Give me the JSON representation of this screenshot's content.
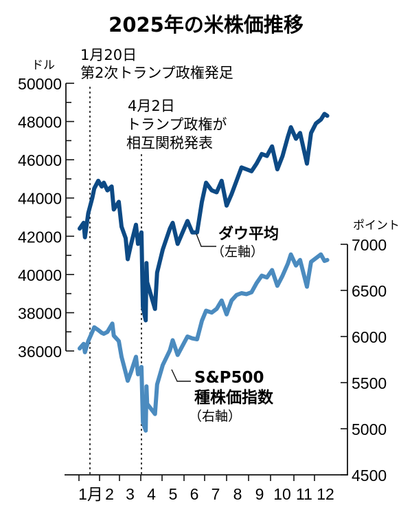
{
  "chart_data": {
    "type": "line",
    "title": "2025年の米株価推移",
    "xlabel": "",
    "x_tick_labels": [
      "1月",
      "2",
      "3",
      "4",
      "5",
      "6",
      "7",
      "8",
      "9",
      "10",
      "11",
      "12"
    ],
    "left_axis": {
      "unit": "ドル",
      "ticks": [
        36000,
        38000,
        40000,
        42000,
        44000,
        46000,
        48000,
        50000
      ],
      "tick_labels": [
        "36000",
        "38000",
        "40000",
        "42000",
        "44000",
        "46000",
        "48000",
        "50000"
      ],
      "ylim": [
        36000,
        50000
      ]
    },
    "right_axis": {
      "unit": "ポイント",
      "ticks": [
        4500,
        5000,
        5500,
        6000,
        6500,
        7000
      ],
      "tick_labels": [
        "4500",
        "5000",
        "5500",
        "6000",
        "6500",
        "7000"
      ],
      "ylim": [
        4500,
        7000
      ]
    },
    "series": [
      {
        "name": "ダウ平均",
        "axis": "left",
        "axis_note": "（左軸）",
        "color": "#0d4a85",
        "points": [
          [
            "1/2",
            42400
          ],
          [
            "1/8",
            42700
          ],
          [
            "1/10",
            41950
          ],
          [
            "1/15",
            43200
          ],
          [
            "1/21",
            44000
          ],
          [
            "1/24",
            44500
          ],
          [
            "1/30",
            44900
          ],
          [
            "2/4",
            44600
          ],
          [
            "2/7",
            44800
          ],
          [
            "2/12",
            44400
          ],
          [
            "2/18",
            44600
          ],
          [
            "2/21",
            43400
          ],
          [
            "2/28",
            43800
          ],
          [
            "3/4",
            42500
          ],
          [
            "3/10",
            41900
          ],
          [
            "3/13",
            40800
          ],
          [
            "3/18",
            41600
          ],
          [
            "3/25",
            42600
          ],
          [
            "3/28",
            41600
          ],
          [
            "4/2",
            42200
          ],
          [
            "4/4",
            38300
          ],
          [
            "4/8",
            37600
          ],
          [
            "4/9",
            40600
          ],
          [
            "4/10",
            39600
          ],
          [
            "4/21",
            38200
          ],
          [
            "4/24",
            40100
          ],
          [
            "5/2",
            41300
          ],
          [
            "5/12",
            42400
          ],
          [
            "5/16",
            42700
          ],
          [
            "5/23",
            41600
          ],
          [
            "6/6",
            42800
          ],
          [
            "6/13",
            42200
          ],
          [
            "6/20",
            42200
          ],
          [
            "6/27",
            43800
          ],
          [
            "7/3",
            44800
          ],
          [
            "7/11",
            44400
          ],
          [
            "7/18",
            44300
          ],
          [
            "7/25",
            44900
          ],
          [
            "8/1",
            43600
          ],
          [
            "8/8",
            44200
          ],
          [
            "8/15",
            44900
          ],
          [
            "8/22",
            45600
          ],
          [
            "8/29",
            45500
          ],
          [
            "9/5",
            45400
          ],
          [
            "9/12",
            45800
          ],
          [
            "9/19",
            46300
          ],
          [
            "9/26",
            46200
          ],
          [
            "10/3",
            46700
          ],
          [
            "10/10",
            45500
          ],
          [
            "10/17",
            46200
          ],
          [
            "10/24",
            47200
          ],
          [
            "10/28",
            47700
          ],
          [
            "11/4",
            47100
          ],
          [
            "11/10",
            47400
          ],
          [
            "11/20",
            45800
          ],
          [
            "11/26",
            47400
          ],
          [
            "12/3",
            47900
          ],
          [
            "12/10",
            48100
          ],
          [
            "12/15",
            48400
          ],
          [
            "12/19",
            48300
          ]
        ]
      },
      {
        "name": "S&P500種株価指数",
        "axis": "right",
        "axis_note": "（右軸）",
        "color": "#4b8bbf",
        "points": [
          [
            "1/2",
            5870
          ],
          [
            "1/8",
            5920
          ],
          [
            "1/10",
            5830
          ],
          [
            "1/15",
            5950
          ],
          [
            "1/21",
            6050
          ],
          [
            "1/24",
            6100
          ],
          [
            "1/30",
            6070
          ],
          [
            "2/4",
            6040
          ],
          [
            "2/7",
            6030
          ],
          [
            "2/12",
            6050
          ],
          [
            "2/19",
            6140
          ],
          [
            "2/21",
            6010
          ],
          [
            "2/28",
            5950
          ],
          [
            "3/4",
            5780
          ],
          [
            "3/10",
            5610
          ],
          [
            "3/13",
            5520
          ],
          [
            "3/18",
            5620
          ],
          [
            "3/25",
            5780
          ],
          [
            "3/28",
            5590
          ],
          [
            "4/2",
            5670
          ],
          [
            "4/4",
            5070
          ],
          [
            "4/8",
            4980
          ],
          [
            "4/9",
            5460
          ],
          [
            "4/10",
            5270
          ],
          [
            "4/21",
            5160
          ],
          [
            "4/24",
            5480
          ],
          [
            "5/2",
            5690
          ],
          [
            "5/12",
            5850
          ],
          [
            "5/16",
            5960
          ],
          [
            "5/23",
            5800
          ],
          [
            "6/6",
            6000
          ],
          [
            "6/13",
            5980
          ],
          [
            "6/20",
            5970
          ],
          [
            "6/27",
            6170
          ],
          [
            "7/3",
            6280
          ],
          [
            "7/11",
            6260
          ],
          [
            "7/18",
            6300
          ],
          [
            "7/25",
            6390
          ],
          [
            "8/1",
            6240
          ],
          [
            "8/8",
            6390
          ],
          [
            "8/15",
            6450
          ],
          [
            "8/22",
            6470
          ],
          [
            "8/29",
            6460
          ],
          [
            "9/5",
            6480
          ],
          [
            "9/12",
            6580
          ],
          [
            "9/19",
            6660
          ],
          [
            "9/26",
            6640
          ],
          [
            "10/3",
            6720
          ],
          [
            "10/10",
            6550
          ],
          [
            "10/17",
            6660
          ],
          [
            "10/24",
            6790
          ],
          [
            "10/28",
            6890
          ],
          [
            "11/4",
            6770
          ],
          [
            "11/10",
            6830
          ],
          [
            "11/20",
            6540
          ],
          [
            "11/26",
            6810
          ],
          [
            "12/3",
            6850
          ],
          [
            "12/10",
            6890
          ],
          [
            "12/15",
            6820
          ],
          [
            "12/19",
            6830
          ]
        ]
      }
    ],
    "annotations": [
      {
        "date": "1月20日",
        "text": "第2次トランプ政権発足",
        "type": "vertical-dotted-line"
      },
      {
        "date": "4月2日",
        "text_line1": "トランプ政権が",
        "text_line2": "相互関税発表",
        "type": "vertical-dotted-line"
      }
    ],
    "grid": false,
    "legend_position": "inline-labels"
  }
}
